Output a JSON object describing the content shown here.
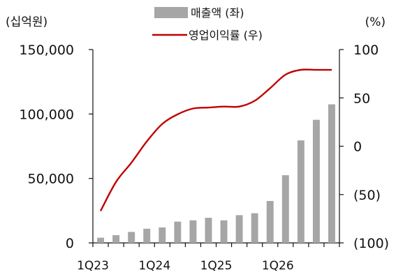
{
  "chart_data": {
    "type": "bar+line",
    "left_unit": "(십억원)",
    "right_unit": "(%)",
    "left_axis": {
      "ylim": [
        0,
        150000
      ],
      "ticks": [
        0,
        50000,
        100000,
        150000
      ],
      "tick_labels": [
        "0",
        "50,000",
        "100,000",
        "150,000"
      ]
    },
    "right_axis": {
      "ylim": [
        -100,
        100
      ],
      "ticks": [
        -100,
        -50,
        0,
        50,
        100
      ],
      "tick_labels": [
        "(100)",
        "(50)",
        "0",
        "50",
        "100"
      ]
    },
    "x_tick_labels": [
      {
        "label": "1Q23",
        "index": 0
      },
      {
        "label": "1Q24",
        "index": 4
      },
      {
        "label": "1Q25",
        "index": 8
      },
      {
        "label": "1Q26",
        "index": 12
      }
    ],
    "legend": [
      {
        "label": "매출액 (좌)",
        "kind": "bar",
        "color": "#a6a6a6"
      },
      {
        "label": "영업이익률 (우)",
        "kind": "line",
        "color": "#c00000"
      }
    ],
    "series": [
      {
        "name": "매출액 (좌)",
        "type": "bar",
        "axis": "left",
        "color": "#a6a6a6",
        "values": [
          4000,
          6000,
          8500,
          11000,
          12000,
          16500,
          17500,
          19500,
          17500,
          21500,
          23000,
          32500,
          52500,
          79500,
          95500,
          107500
        ]
      },
      {
        "name": "영업이익률 (우)",
        "type": "line",
        "axis": "right",
        "color": "#c00000",
        "values": [
          -67,
          -37,
          -17,
          5,
          23,
          33,
          39,
          40,
          41,
          41,
          47,
          60,
          74,
          79,
          79,
          79
        ]
      }
    ],
    "grid": false,
    "legend_position": "top-center"
  }
}
